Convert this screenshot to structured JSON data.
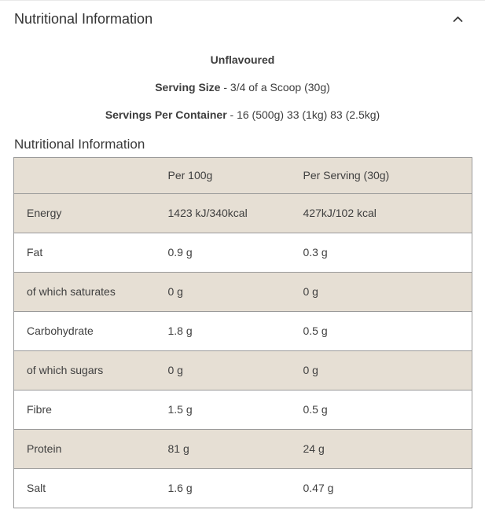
{
  "accordion": {
    "title": "Nutritional Information",
    "chevron_icon": "chevron-up"
  },
  "intro": {
    "flavour": "Unflavoured",
    "serving_size_label": "Serving Size",
    "serving_size_value": " - 3/4 of a Scoop (30g)",
    "servings_label": "Servings Per Container",
    "servings_value": " - 16 (500g) 33 (1kg) 83 (2.5kg)"
  },
  "section_title": "Nutritional Information",
  "table": {
    "headers": [
      "",
      "Per 100g",
      "Per Serving (30g)"
    ],
    "rows": [
      {
        "label": "Energy",
        "per_100g": "1423 kJ/340kcal",
        "per_serving": "427kJ/102 kcal"
      },
      {
        "label": "Fat",
        "per_100g": "0.9 g",
        "per_serving": "0.3 g"
      },
      {
        "label": "of which saturates",
        "per_100g": "0 g",
        "per_serving": "0 g"
      },
      {
        "label": "Carbohydrate",
        "per_100g": "1.8 g",
        "per_serving": "0.5 g"
      },
      {
        "label": "of which sugars",
        "per_100g": "0 g",
        "per_serving": "0 g"
      },
      {
        "label": "Fibre",
        "per_100g": "1.5 g",
        "per_serving": "0.5 g"
      },
      {
        "label": "Protein",
        "per_100g": "81 g",
        "per_serving": "24 g"
      },
      {
        "label": "Salt",
        "per_100g": "1.6 g",
        "per_serving": "0.47 g"
      }
    ]
  },
  "colors": {
    "row_highlight": "#e6dfd4",
    "table_border": "#9a9a9a",
    "text": "#3d3d3d"
  }
}
